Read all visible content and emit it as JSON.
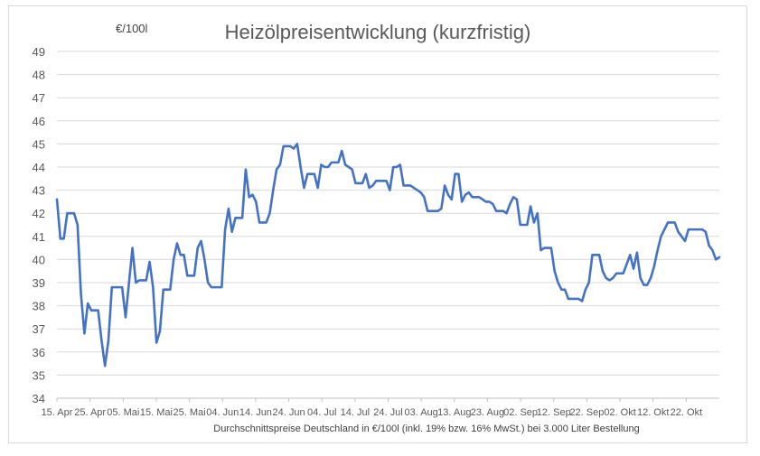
{
  "chart_data": {
    "type": "line",
    "title": "Heizölpreisentwicklung (kurzfristig)",
    "unit_label": "€/100l",
    "xlabel": "Durchschnittspreise Deutschland in €/100l (inkl. 19% bzw. 16% MwSt.) bei 3.000 Liter Bestellung",
    "ylabel": "",
    "ylim": [
      34,
      49
    ],
    "yticks": [
      34,
      35,
      36,
      37,
      38,
      39,
      40,
      41,
      42,
      43,
      44,
      45,
      46,
      47,
      48,
      49
    ],
    "x_tick_labels": [
      "15. Apr",
      "25. Apr",
      "05. Mai",
      "15. Mai",
      "25. Mai",
      "04. Jun",
      "14. Jun",
      "24. Jun",
      "04. Jul",
      "14. Jul",
      "24. Jul",
      "03. Aug",
      "13. Aug",
      "23. Aug",
      "02. Sep",
      "12. Sep",
      "22. Sep",
      "02. Okt",
      "12. Okt",
      "22. Okt"
    ],
    "grid": true,
    "legend": "none",
    "series": [
      {
        "color": "#4472c4",
        "values": [
          42.6,
          40.9,
          40.9,
          42.0,
          42.0,
          42.0,
          41.5,
          38.5,
          36.8,
          38.1,
          37.8,
          37.8,
          37.8,
          36.5,
          35.4,
          36.5,
          38.8,
          38.8,
          38.8,
          38.8,
          37.5,
          39.0,
          40.5,
          39.0,
          39.1,
          39.1,
          39.1,
          39.9,
          38.8,
          36.4,
          36.9,
          38.7,
          38.7,
          38.7,
          40.0,
          40.7,
          40.2,
          40.2,
          39.3,
          39.3,
          39.3,
          40.5,
          40.8,
          40.0,
          39.0,
          38.8,
          38.8,
          38.8,
          38.8,
          41.3,
          42.2,
          41.2,
          41.8,
          41.8,
          41.8,
          43.9,
          42.7,
          42.8,
          42.5,
          41.6,
          41.6,
          41.6,
          42.0,
          43.0,
          43.9,
          44.1,
          44.9,
          44.9,
          44.9,
          44.8,
          45.0,
          44.0,
          43.1,
          43.7,
          43.7,
          43.7,
          43.1,
          44.1,
          44.0,
          44.0,
          44.2,
          44.2,
          44.2,
          44.7,
          44.1,
          44.0,
          43.9,
          43.3,
          43.3,
          43.3,
          43.7,
          43.1,
          43.2,
          43.4,
          43.4,
          43.4,
          43.4,
          43.0,
          44.0,
          44.0,
          44.1,
          43.2,
          43.2,
          43.2,
          43.1,
          43.0,
          42.9,
          42.7,
          42.1,
          42.1,
          42.1,
          42.1,
          42.2,
          43.2,
          42.8,
          42.6,
          43.7,
          43.7,
          42.5,
          42.8,
          42.9,
          42.7,
          42.7,
          42.7,
          42.6,
          42.5,
          42.5,
          42.4,
          42.1,
          42.1,
          42.1,
          42.0,
          42.4,
          42.7,
          42.6,
          41.5,
          41.5,
          41.5,
          42.3,
          41.6,
          42.0,
          40.4,
          40.5,
          40.5,
          40.5,
          39.5,
          39.0,
          38.7,
          38.7,
          38.3,
          38.3,
          38.3,
          38.3,
          38.2,
          38.7,
          39.0,
          40.2,
          40.2,
          40.2,
          39.5,
          39.2,
          39.1,
          39.2,
          39.4,
          39.4,
          39.4,
          39.8,
          40.2,
          39.6,
          40.3,
          39.2,
          38.9,
          38.9,
          39.2,
          39.7,
          40.4,
          41.0,
          41.3,
          41.6,
          41.6,
          41.6,
          41.2,
          41.0,
          40.8,
          41.3,
          41.3,
          41.3,
          41.3,
          41.3,
          41.2,
          40.6,
          40.4,
          40.0,
          40.1
        ]
      }
    ]
  }
}
